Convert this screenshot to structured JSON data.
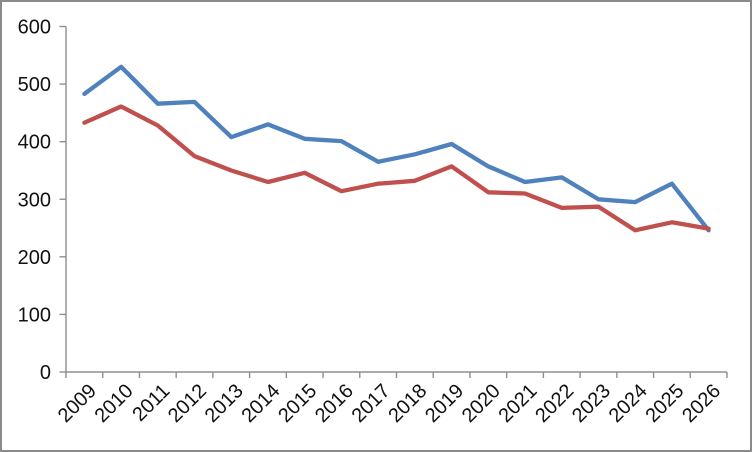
{
  "window": {
    "background": "#ffffff",
    "border_color": "#8a8a8a"
  },
  "chart_data": {
    "type": "line",
    "title": "",
    "xlabel": "",
    "ylabel": "",
    "categories": [
      "2009",
      "2010",
      "2011",
      "2012",
      "2013",
      "2014",
      "2015",
      "2016",
      "2017",
      "2018",
      "2019",
      "2020",
      "2021",
      "2022",
      "2023",
      "2024",
      "2025",
      "2026"
    ],
    "series": [
      {
        "name": "series-blue",
        "color": "#4F81BD",
        "values": [
          483,
          530,
          466,
          469,
          408,
          430,
          405,
          401,
          365,
          378,
          396,
          357,
          330,
          338,
          300,
          295,
          327,
          246
        ]
      },
      {
        "name": "series-red",
        "color": "#C0504D",
        "values": [
          433,
          461,
          428,
          375,
          350,
          330,
          346,
          314,
          327,
          332,
          357,
          312,
          310,
          285,
          287,
          246,
          260,
          249
        ]
      }
    ],
    "ylim": [
      0,
      600
    ],
    "yticks": [
      0,
      100,
      200,
      300,
      400,
      500,
      600
    ],
    "ytick_interval": 100,
    "x_tick_label_rotation": -45,
    "grid": false,
    "legend": "none",
    "axis_color": "#8f8f8f",
    "tick_label_color": "#111111",
    "line_width": 4.3
  }
}
